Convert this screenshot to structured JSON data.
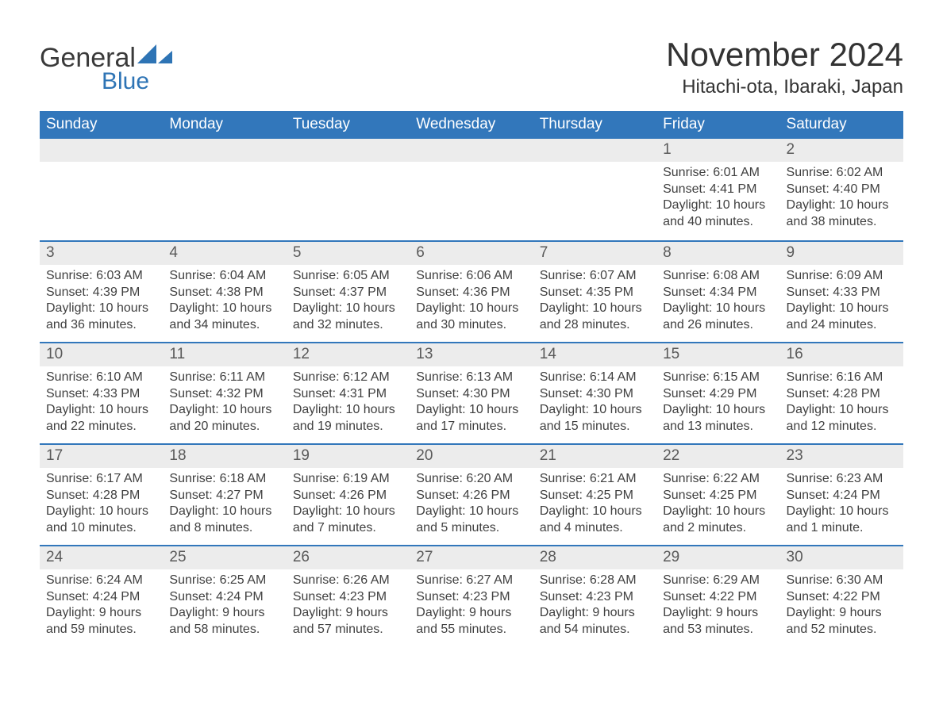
{
  "brand": {
    "text_main": "General",
    "text_sub": "Blue",
    "color_accent": "#2e74b5",
    "color_text": "#3a3a3a"
  },
  "header": {
    "month_title": "November 2024",
    "location": "Hitachi-ota, Ibaraki, Japan",
    "title_fontsize": 42,
    "location_fontsize": 24,
    "text_color": "#333333"
  },
  "calendar": {
    "header_bg": "#3277bb",
    "header_fg": "#ffffff",
    "daynum_bg": "#ececec",
    "daynum_border": "#3277bb",
    "body_fg": "#404040",
    "weekday_fontsize": 19,
    "daynum_fontsize": 19,
    "body_fontsize": 16,
    "weekdays": [
      "Sunday",
      "Monday",
      "Tuesday",
      "Wednesday",
      "Thursday",
      "Friday",
      "Saturday"
    ],
    "weeks": [
      [
        {
          "day": "",
          "sunrise": "",
          "sunset": "",
          "daylight": ""
        },
        {
          "day": "",
          "sunrise": "",
          "sunset": "",
          "daylight": ""
        },
        {
          "day": "",
          "sunrise": "",
          "sunset": "",
          "daylight": ""
        },
        {
          "day": "",
          "sunrise": "",
          "sunset": "",
          "daylight": ""
        },
        {
          "day": "",
          "sunrise": "",
          "sunset": "",
          "daylight": ""
        },
        {
          "day": "1",
          "sunrise": "Sunrise: 6:01 AM",
          "sunset": "Sunset: 4:41 PM",
          "daylight": "Daylight: 10 hours and 40 minutes."
        },
        {
          "day": "2",
          "sunrise": "Sunrise: 6:02 AM",
          "sunset": "Sunset: 4:40 PM",
          "daylight": "Daylight: 10 hours and 38 minutes."
        }
      ],
      [
        {
          "day": "3",
          "sunrise": "Sunrise: 6:03 AM",
          "sunset": "Sunset: 4:39 PM",
          "daylight": "Daylight: 10 hours and 36 minutes."
        },
        {
          "day": "4",
          "sunrise": "Sunrise: 6:04 AM",
          "sunset": "Sunset: 4:38 PM",
          "daylight": "Daylight: 10 hours and 34 minutes."
        },
        {
          "day": "5",
          "sunrise": "Sunrise: 6:05 AM",
          "sunset": "Sunset: 4:37 PM",
          "daylight": "Daylight: 10 hours and 32 minutes."
        },
        {
          "day": "6",
          "sunrise": "Sunrise: 6:06 AM",
          "sunset": "Sunset: 4:36 PM",
          "daylight": "Daylight: 10 hours and 30 minutes."
        },
        {
          "day": "7",
          "sunrise": "Sunrise: 6:07 AM",
          "sunset": "Sunset: 4:35 PM",
          "daylight": "Daylight: 10 hours and 28 minutes."
        },
        {
          "day": "8",
          "sunrise": "Sunrise: 6:08 AM",
          "sunset": "Sunset: 4:34 PM",
          "daylight": "Daylight: 10 hours and 26 minutes."
        },
        {
          "day": "9",
          "sunrise": "Sunrise: 6:09 AM",
          "sunset": "Sunset: 4:33 PM",
          "daylight": "Daylight: 10 hours and 24 minutes."
        }
      ],
      [
        {
          "day": "10",
          "sunrise": "Sunrise: 6:10 AM",
          "sunset": "Sunset: 4:33 PM",
          "daylight": "Daylight: 10 hours and 22 minutes."
        },
        {
          "day": "11",
          "sunrise": "Sunrise: 6:11 AM",
          "sunset": "Sunset: 4:32 PM",
          "daylight": "Daylight: 10 hours and 20 minutes."
        },
        {
          "day": "12",
          "sunrise": "Sunrise: 6:12 AM",
          "sunset": "Sunset: 4:31 PM",
          "daylight": "Daylight: 10 hours and 19 minutes."
        },
        {
          "day": "13",
          "sunrise": "Sunrise: 6:13 AM",
          "sunset": "Sunset: 4:30 PM",
          "daylight": "Daylight: 10 hours and 17 minutes."
        },
        {
          "day": "14",
          "sunrise": "Sunrise: 6:14 AM",
          "sunset": "Sunset: 4:30 PM",
          "daylight": "Daylight: 10 hours and 15 minutes."
        },
        {
          "day": "15",
          "sunrise": "Sunrise: 6:15 AM",
          "sunset": "Sunset: 4:29 PM",
          "daylight": "Daylight: 10 hours and 13 minutes."
        },
        {
          "day": "16",
          "sunrise": "Sunrise: 6:16 AM",
          "sunset": "Sunset: 4:28 PM",
          "daylight": "Daylight: 10 hours and 12 minutes."
        }
      ],
      [
        {
          "day": "17",
          "sunrise": "Sunrise: 6:17 AM",
          "sunset": "Sunset: 4:28 PM",
          "daylight": "Daylight: 10 hours and 10 minutes."
        },
        {
          "day": "18",
          "sunrise": "Sunrise: 6:18 AM",
          "sunset": "Sunset: 4:27 PM",
          "daylight": "Daylight: 10 hours and 8 minutes."
        },
        {
          "day": "19",
          "sunrise": "Sunrise: 6:19 AM",
          "sunset": "Sunset: 4:26 PM",
          "daylight": "Daylight: 10 hours and 7 minutes."
        },
        {
          "day": "20",
          "sunrise": "Sunrise: 6:20 AM",
          "sunset": "Sunset: 4:26 PM",
          "daylight": "Daylight: 10 hours and 5 minutes."
        },
        {
          "day": "21",
          "sunrise": "Sunrise: 6:21 AM",
          "sunset": "Sunset: 4:25 PM",
          "daylight": "Daylight: 10 hours and 4 minutes."
        },
        {
          "day": "22",
          "sunrise": "Sunrise: 6:22 AM",
          "sunset": "Sunset: 4:25 PM",
          "daylight": "Daylight: 10 hours and 2 minutes."
        },
        {
          "day": "23",
          "sunrise": "Sunrise: 6:23 AM",
          "sunset": "Sunset: 4:24 PM",
          "daylight": "Daylight: 10 hours and 1 minute."
        }
      ],
      [
        {
          "day": "24",
          "sunrise": "Sunrise: 6:24 AM",
          "sunset": "Sunset: 4:24 PM",
          "daylight": "Daylight: 9 hours and 59 minutes."
        },
        {
          "day": "25",
          "sunrise": "Sunrise: 6:25 AM",
          "sunset": "Sunset: 4:24 PM",
          "daylight": "Daylight: 9 hours and 58 minutes."
        },
        {
          "day": "26",
          "sunrise": "Sunrise: 6:26 AM",
          "sunset": "Sunset: 4:23 PM",
          "daylight": "Daylight: 9 hours and 57 minutes."
        },
        {
          "day": "27",
          "sunrise": "Sunrise: 6:27 AM",
          "sunset": "Sunset: 4:23 PM",
          "daylight": "Daylight: 9 hours and 55 minutes."
        },
        {
          "day": "28",
          "sunrise": "Sunrise: 6:28 AM",
          "sunset": "Sunset: 4:23 PM",
          "daylight": "Daylight: 9 hours and 54 minutes."
        },
        {
          "day": "29",
          "sunrise": "Sunrise: 6:29 AM",
          "sunset": "Sunset: 4:22 PM",
          "daylight": "Daylight: 9 hours and 53 minutes."
        },
        {
          "day": "30",
          "sunrise": "Sunrise: 6:30 AM",
          "sunset": "Sunset: 4:22 PM",
          "daylight": "Daylight: 9 hours and 52 minutes."
        }
      ]
    ]
  }
}
